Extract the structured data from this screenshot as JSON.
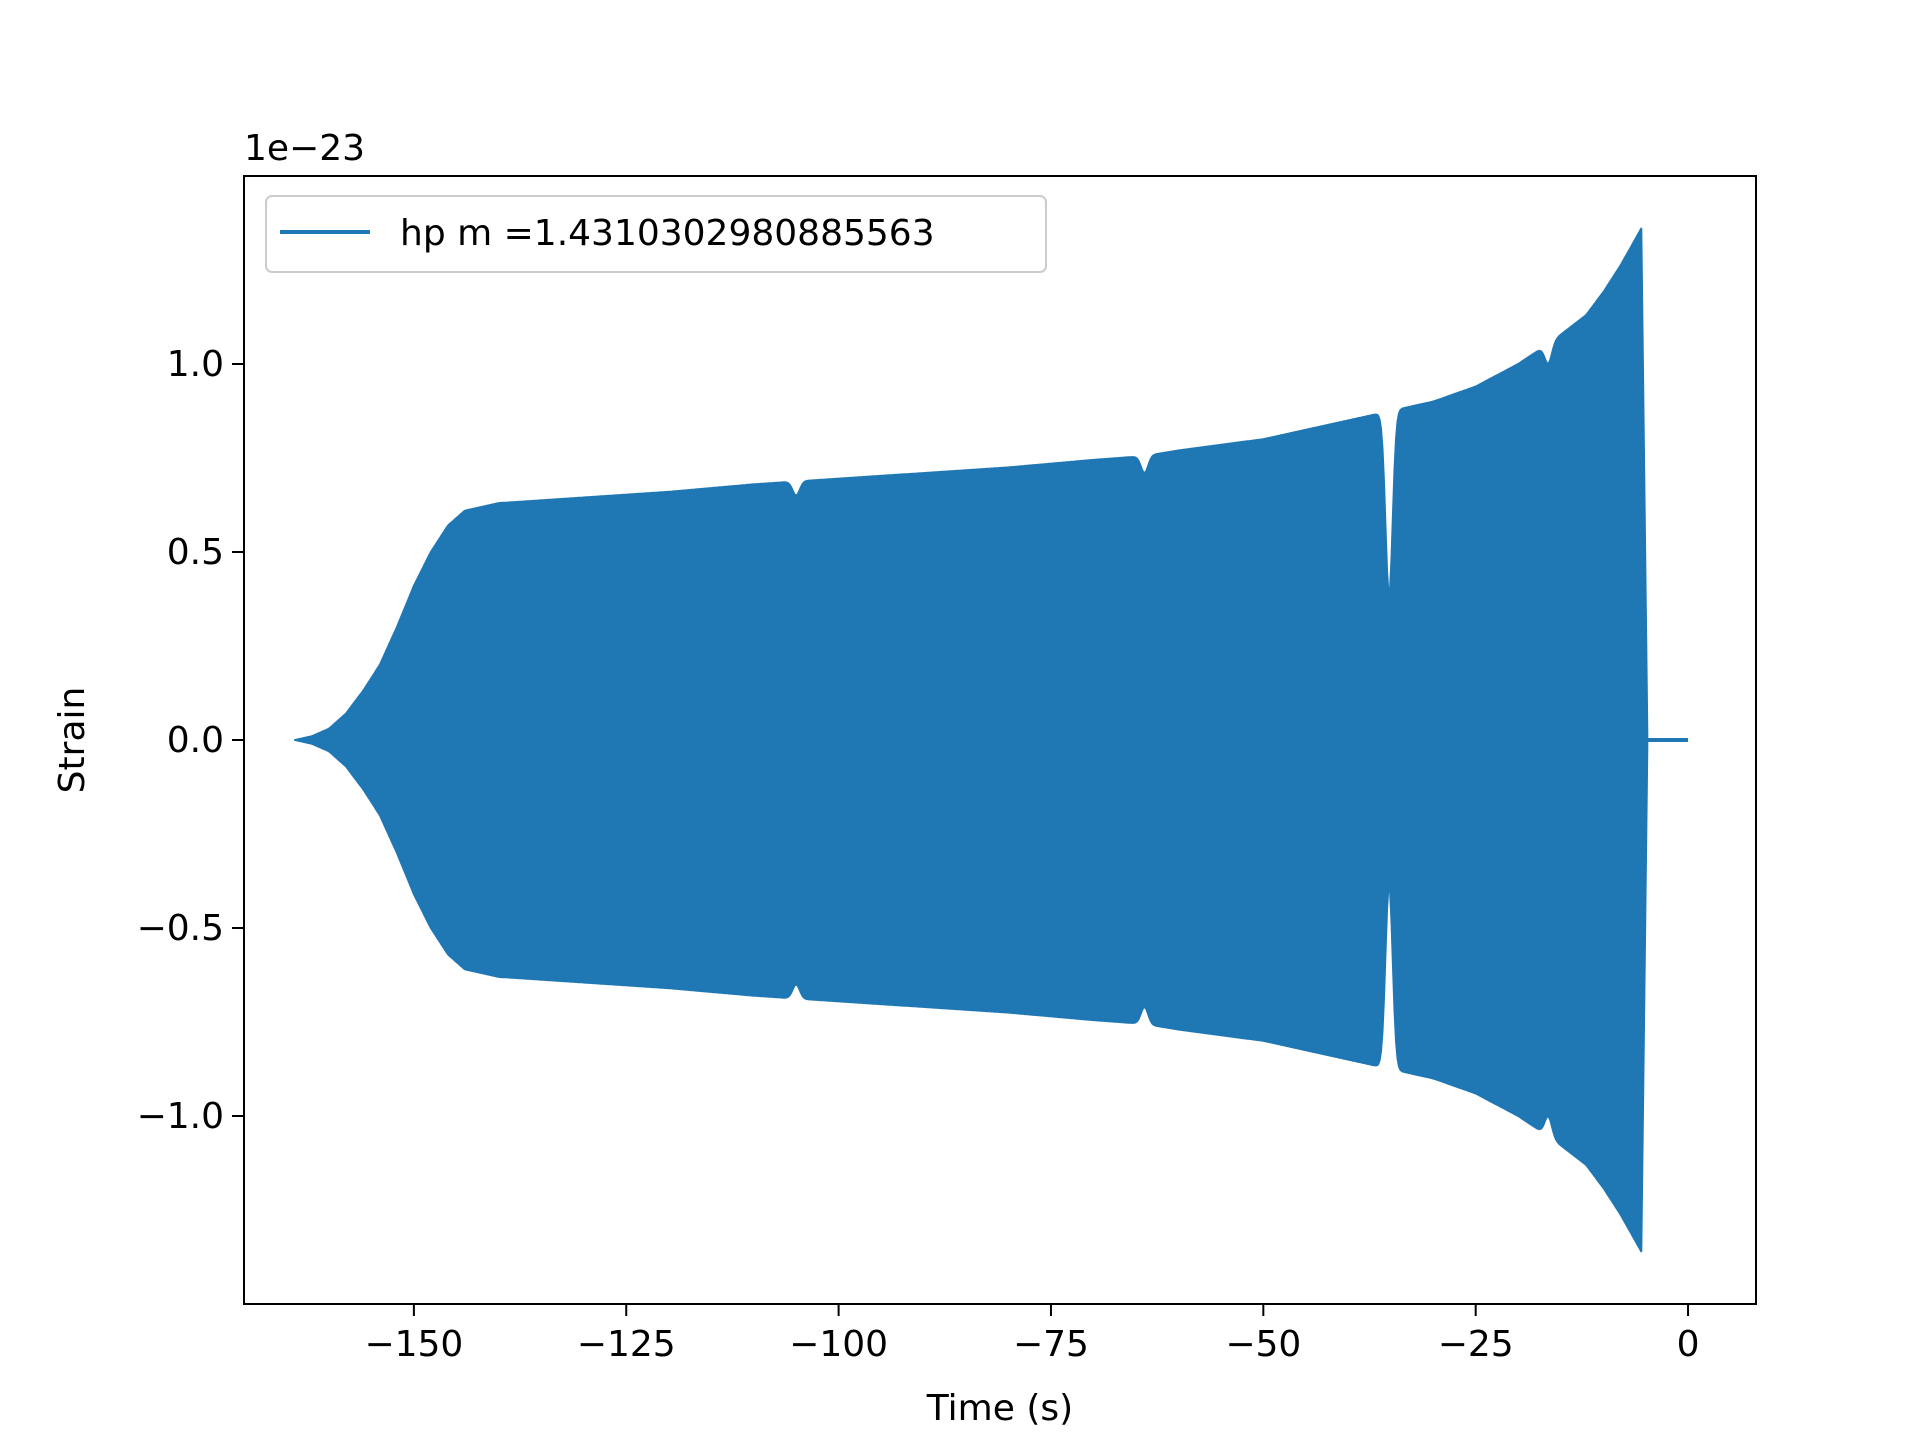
{
  "chart_data": {
    "type": "line",
    "title": "",
    "xlabel": "Time (s)",
    "ylabel": "Strain",
    "y_offset_label": "1e−23",
    "xlim": [
      -170,
      8
    ],
    "ylim": [
      -1.5,
      1.5
    ],
    "x_ticks": [
      {
        "value": -150,
        "label": "−150"
      },
      {
        "value": -125,
        "label": "−125"
      },
      {
        "value": -100,
        "label": "−100"
      },
      {
        "value": -75,
        "label": "−75"
      },
      {
        "value": -50,
        "label": "−50"
      },
      {
        "value": -25,
        "label": "−25"
      },
      {
        "value": 0,
        "label": "0"
      }
    ],
    "y_ticks": [
      {
        "value": -1.0,
        "label": "−1.0"
      },
      {
        "value": -0.5,
        "label": "−0.5"
      },
      {
        "value": 0.0,
        "label": "0.0"
      },
      {
        "value": 0.5,
        "label": "0.5"
      },
      {
        "value": 1.0,
        "label": "1.0"
      }
    ],
    "grid": false,
    "legend_position": "top-left",
    "series": [
      {
        "name": "hp m =1.4310302980885563",
        "color": "#1f77b4",
        "envelope": {
          "t": [
            -164,
            -162,
            -160,
            -158,
            -156,
            -154,
            -152,
            -150,
            -148,
            -146,
            -144,
            -142,
            -140,
            -130,
            -120,
            -110,
            -100,
            -90,
            -80,
            -70,
            -64,
            -60,
            -50,
            -40,
            -36,
            -30,
            -25,
            -20,
            -16,
            -12,
            -10,
            -8,
            -6,
            -5.5
          ],
          "amplitude": [
            0.0,
            0.01,
            0.03,
            0.07,
            0.13,
            0.2,
            0.3,
            0.41,
            0.5,
            0.57,
            0.61,
            0.62,
            0.63,
            0.645,
            0.66,
            0.68,
            0.695,
            0.71,
            0.725,
            0.745,
            0.755,
            0.77,
            0.8,
            0.85,
            0.87,
            0.9,
            0.94,
            1.0,
            1.06,
            1.13,
            1.19,
            1.26,
            1.34,
            1.36
          ]
        },
        "dips": [
          {
            "t": -105,
            "amplitude": 0.65
          },
          {
            "t": -64,
            "amplitude": 0.71
          },
          {
            "t": -35.2,
            "amplitude": 0.38
          },
          {
            "t": -16.5,
            "amplitude": 1.0
          }
        ],
        "merger_time": -5.5,
        "ringdown_end": -4.8,
        "flat_tail_end": 0
      }
    ]
  }
}
